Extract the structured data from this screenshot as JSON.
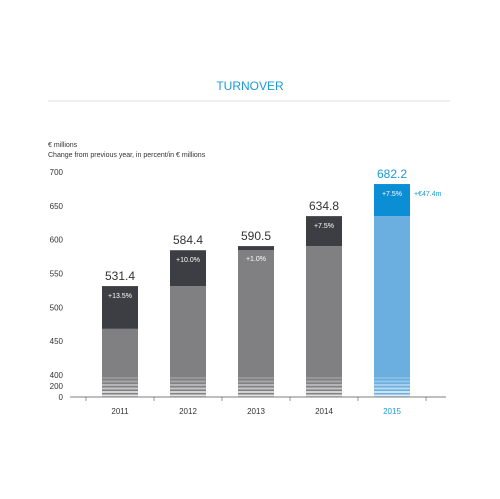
{
  "chart_data": {
    "type": "bar",
    "title": "TURNOVER",
    "unit_label": "€ millions",
    "subtitle": "Change from previous year, in percent/in € millions",
    "categories": [
      "2011",
      "2012",
      "2013",
      "2014",
      "2015"
    ],
    "values": [
      531.4,
      584.4,
      590.5,
      634.8,
      682.2
    ],
    "value_labels": [
      "531.4",
      "584.4",
      "590.5",
      "634.8",
      "682.2"
    ],
    "previous_year_values": [
      468.2,
      531.4,
      584.4,
      590.5,
      634.8
    ],
    "change_labels": [
      "+13.5%",
      "+10.0%",
      "+1.0%",
      "+7.5%",
      "+7.5%"
    ],
    "extra_annotation": "+€47.4m",
    "yticks": [
      0,
      200,
      400,
      450,
      500,
      550,
      600,
      650,
      700
    ],
    "ytick_labels": [
      "0",
      "200",
      "400",
      "450",
      "500",
      "550",
      "600",
      "650",
      "700"
    ],
    "axis_break": true,
    "ylim": [
      0,
      700
    ],
    "highlight_index": 4,
    "colors": {
      "title": "#1a9bd7",
      "base_bar": "#808083",
      "change_bar": "#3d3e43",
      "highlight_base": "#6aafe0",
      "highlight_change": "#0b8ed3",
      "axis": "#555555",
      "text": "#333333"
    }
  }
}
